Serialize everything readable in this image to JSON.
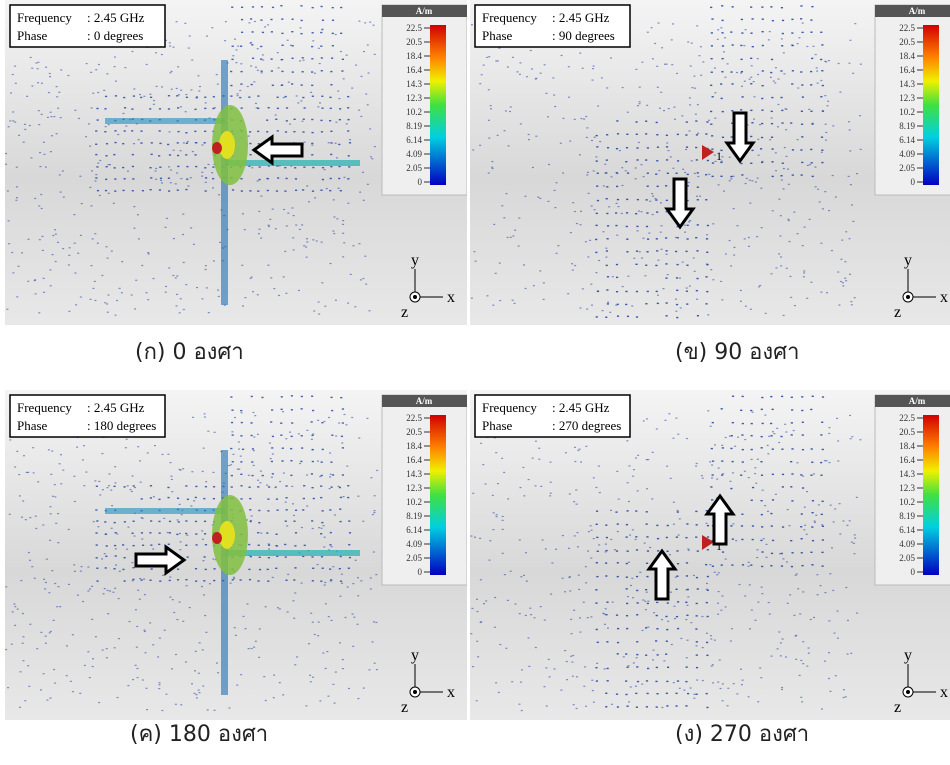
{
  "panels": [
    {
      "frequency_label": "Frequency",
      "frequency_value": ": 2.45 GHz",
      "phase_label": "Phase",
      "phase_value": ": 0 degrees",
      "unit": "A/m",
      "ticks": [
        "22.5",
        "20.5",
        "18.4",
        "16.4",
        "14.3",
        "12.3",
        "10.2",
        "8.19",
        "6.14",
        "4.09",
        "2.05",
        "0"
      ],
      "axes": {
        "y": "y",
        "x": "x",
        "z": "z"
      },
      "caption": "(ก) 0 องศา"
    },
    {
      "frequency_label": "Frequency",
      "frequency_value": ": 2.45 GHz",
      "phase_label": "Phase",
      "phase_value": ": 90 degrees",
      "unit": "A/m",
      "ticks": [
        "22.5",
        "20.5",
        "18.4",
        "16.4",
        "14.3",
        "12.3",
        "10.2",
        "8.19",
        "6.14",
        "4.09",
        "2.05",
        "0"
      ],
      "axes": {
        "y": "y",
        "x": "x",
        "z": "z"
      },
      "port": "1",
      "caption": "(ข) 90 องศา"
    },
    {
      "frequency_label": "Frequency",
      "frequency_value": ": 2.45 GHz",
      "phase_label": "Phase",
      "phase_value": ": 180 degrees",
      "unit": "A/m",
      "ticks": [
        "22.5",
        "20.5",
        "18.4",
        "16.4",
        "14.3",
        "12.3",
        "10.2",
        "8.19",
        "6.14",
        "4.09",
        "2.05",
        "0"
      ],
      "axes": {
        "y": "y",
        "x": "x",
        "z": "z"
      },
      "caption": "(ค) 180 องศา"
    },
    {
      "frequency_label": "Frequency",
      "frequency_value": ": 2.45 GHz",
      "phase_label": "Phase",
      "phase_value": ": 270 degrees",
      "unit": "A/m",
      "ticks": [
        "22.5",
        "20.5",
        "18.4",
        "16.4",
        "14.3",
        "12.3",
        "10.2",
        "8.19",
        "6.14",
        "4.09",
        "2.05",
        "0"
      ],
      "axes": {
        "y": "y",
        "x": "x",
        "z": "z"
      },
      "port": "1",
      "caption": "(ง) 270 องศา"
    }
  ]
}
